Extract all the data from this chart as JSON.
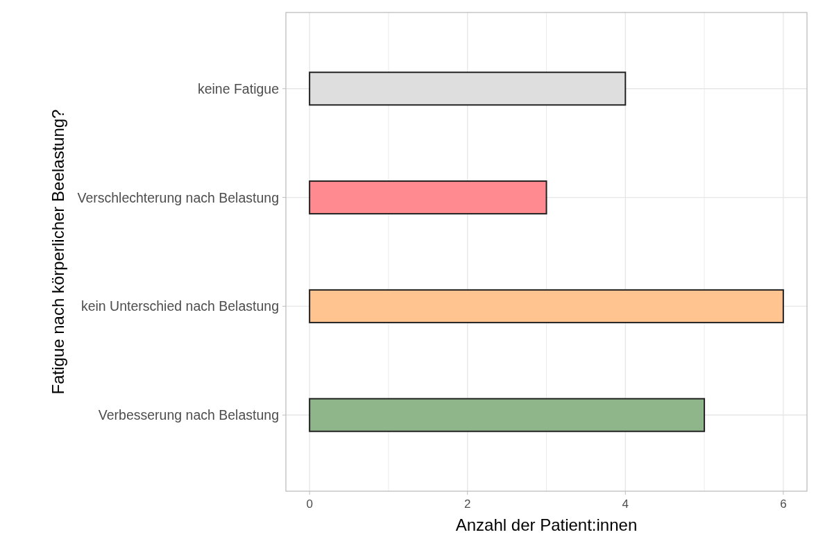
{
  "chart_data": {
    "type": "bar",
    "orientation": "horizontal",
    "xlabel": "Anzahl der Patient:innen",
    "ylabel": "Fatigue nach körperlicher Beelastung?",
    "categories": [
      "keine Fatigue",
      "Verschlechterung nach Belastung",
      "kein Unterschied nach Belastung",
      "Verbesserung nach Belastung"
    ],
    "values": [
      4,
      3,
      6,
      5
    ],
    "colors": [
      "#dedede",
      "#ff8a8f",
      "#ffc490",
      "#8fb58a"
    ],
    "xlim": [
      -0.3,
      6.3
    ],
    "xticks": [
      0,
      {
        "value": 1,
        "label": null
      },
      2,
      {
        "value": 3,
        "label": null
      },
      4,
      {
        "value": 5,
        "label": null
      },
      6
    ],
    "grid": true
  }
}
